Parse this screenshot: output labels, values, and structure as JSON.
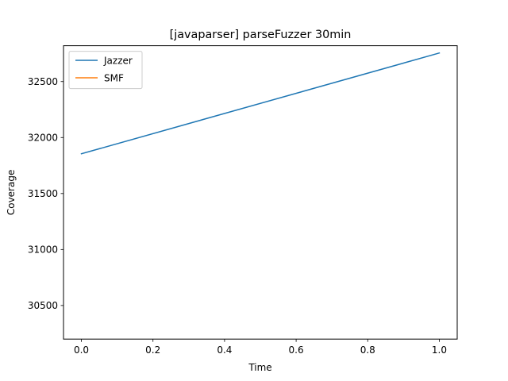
{
  "chart_data": {
    "type": "line",
    "title": "[javaparser] parseFuzzer 30min",
    "xlabel": "Time",
    "ylabel": "Coverage",
    "xlim": [
      -0.05,
      1.05
    ],
    "ylim": [
      30200,
      32820
    ],
    "xticks": [
      0.0,
      0.2,
      0.4,
      0.6,
      0.8,
      1.0
    ],
    "xtick_labels": [
      "0.0",
      "0.2",
      "0.4",
      "0.6",
      "0.8",
      "1.0"
    ],
    "yticks": [
      30500,
      31000,
      31500,
      32000,
      32500
    ],
    "ytick_labels": [
      "30500",
      "31000",
      "31500",
      "32000",
      "32500"
    ],
    "grid": false,
    "legend_position": "upper-left",
    "series": [
      {
        "name": "Jazzer",
        "color": "#1f77b4",
        "x": [
          0.0,
          1.0
        ],
        "y": [
          31855,
          32755
        ]
      },
      {
        "name": "SMF",
        "color": "#ff7f0e",
        "x": [],
        "y": []
      }
    ]
  }
}
